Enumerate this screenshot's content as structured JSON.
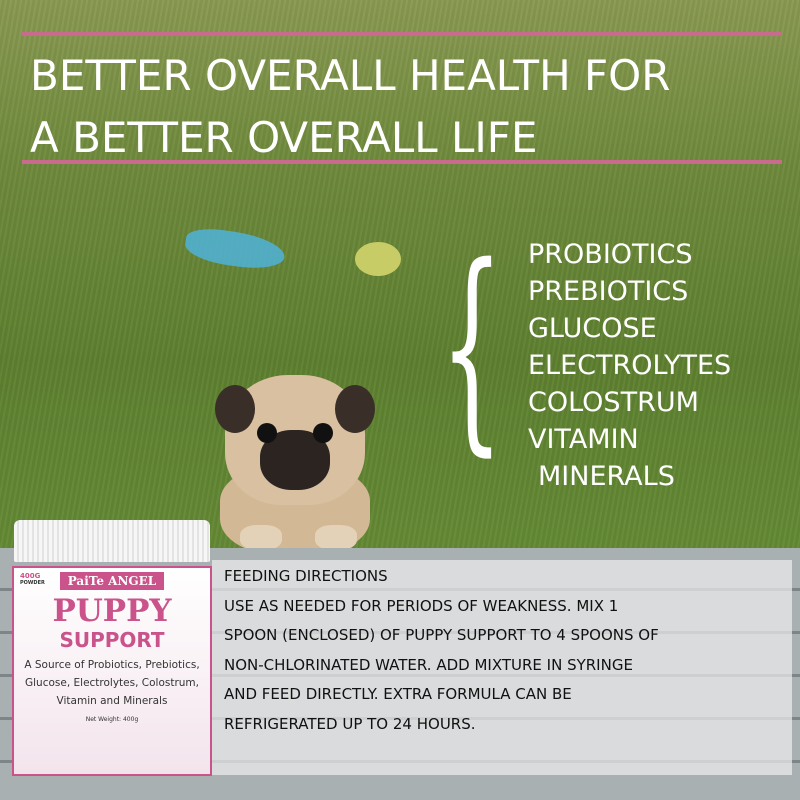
{
  "headline": {
    "line1": "BETTER OVERALL HEALTH FOR",
    "line2": "A BETTER OVERALL LIFE"
  },
  "brace": "{",
  "ingredients": [
    "PROBIOTICS",
    "PREBIOTICS",
    "GLUCOSE",
    "ELECTROLYTES",
    "COLOSTRUM",
    "VITAMIN",
    "MINERALS"
  ],
  "product": {
    "brand": "PaiTe ANGEL",
    "size": "400G",
    "size_note": "POWDER",
    "title_line1": "PUPPY",
    "title_line2": "SUPPORT",
    "description": "A Source of Probiotics, Prebiotics, Glucose, Electrolytes, Colostrum, Vitamin and Minerals",
    "net_weight": "Net Weight: 400g"
  },
  "directions": {
    "heading": "FEEDING DIRECTIONS",
    "lines": [
      "USE AS NEEDED FOR PERIODS OF WEAKNESS. MIX 1",
      "SPOON (ENCLOSED) OF PUPPY SUPPORT TO 4 SPOONS OF",
      "NON-CHLORINATED WATER. ADD MIXTURE IN SYRINGE",
      "AND FEED DIRECTLY. EXTRA FORMULA CAN BE",
      "REFRIGERATED UP TO 24 HOURS."
    ]
  },
  "colors": {
    "accent": "#c96a8f",
    "brand_pink": "#c9538a"
  }
}
